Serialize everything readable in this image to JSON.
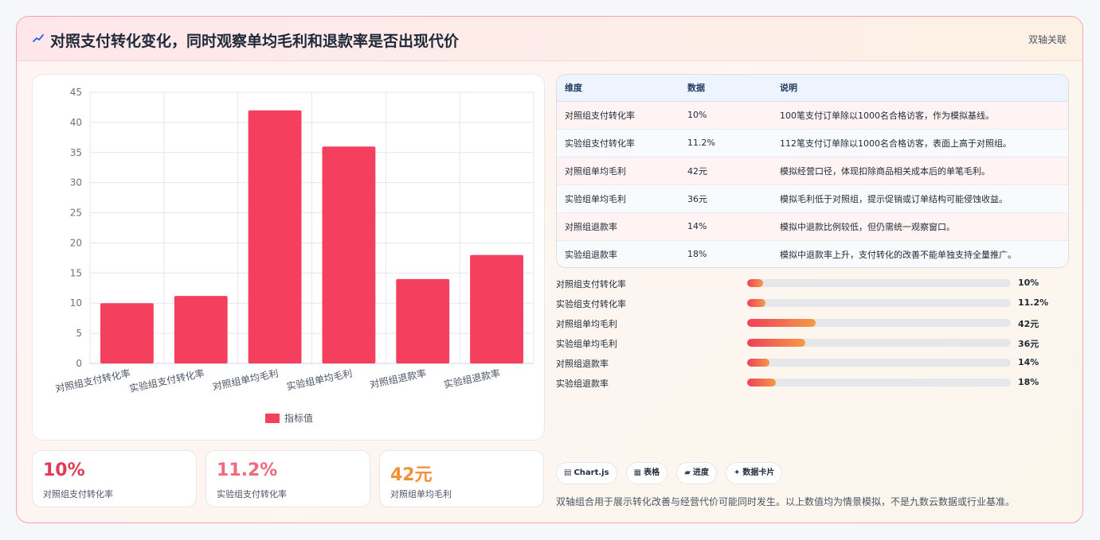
{
  "header": {
    "title": "对照支付转化变化，同时观察单均毛利和退款率是否出现代价",
    "tag": "双轴关联",
    "icon": "sparkline-icon"
  },
  "chart_data": {
    "type": "bar",
    "categories": [
      "对照组支付转化率",
      "实验组支付转化率",
      "对照组单均毛利",
      "实验组单均毛利",
      "对照组退款率",
      "实验组退款率"
    ],
    "series": [
      {
        "name": "指标值",
        "values": [
          10,
          11.2,
          42,
          36,
          14,
          18
        ],
        "color": "#f43f5e"
      }
    ],
    "ylim": [
      0,
      45
    ],
    "yticks": [
      0,
      5,
      10,
      15,
      20,
      25,
      30,
      35,
      40,
      45
    ],
    "grid": true,
    "legend": "bottom",
    "title": "",
    "xlabel": "",
    "ylabel": ""
  },
  "stats": [
    {
      "value": "10%",
      "label": "对照组支付转化率",
      "color": "#e23a55"
    },
    {
      "value": "11.2%",
      "label": "实验组支付转化率",
      "color": "#ef6a7e"
    },
    {
      "value": "42元",
      "label": "对照组单均毛利",
      "color": "#f29138"
    }
  ],
  "table": {
    "headers": [
      "维度",
      "数据",
      "说明"
    ],
    "rows": [
      [
        "对照组支付转化率",
        "10%",
        "100笔支付订单除以1000名合格访客，作为模拟基线。"
      ],
      [
        "实验组支付转化率",
        "11.2%",
        "112笔支付订单除以1000名合格访客，表面上高于对照组。"
      ],
      [
        "对照组单均毛利",
        "42元",
        "模拟经营口径，体现扣除商品相关成本后的单笔毛利。"
      ],
      [
        "实验组单均毛利",
        "36元",
        "模拟毛利低于对照组，提示促销或订单结构可能侵蚀收益。"
      ],
      [
        "对照组退款率",
        "14%",
        "模拟中退款比例较低，但仍需统一观察窗口。"
      ],
      [
        "实验组退款率",
        "18%",
        "模拟中退款率上升，支付转化的改善不能单独支持全量推广。"
      ]
    ]
  },
  "progress": [
    {
      "label": "对照组支付转化率",
      "value": "10%",
      "fraction": 0.06
    },
    {
      "label": "实验组支付转化率",
      "value": "11.2%",
      "fraction": 0.068
    },
    {
      "label": "对照组单均毛利",
      "value": "42元",
      "fraction": 0.26
    },
    {
      "label": "实验组单均毛利",
      "value": "36元",
      "fraction": 0.22
    },
    {
      "label": "对照组退款率",
      "value": "14%",
      "fraction": 0.085
    },
    {
      "label": "实验组退款率",
      "value": "18%",
      "fraction": 0.11
    }
  ],
  "chips": [
    {
      "icon": "▤",
      "icon_name": "chart-icon",
      "label": "Chart.js"
    },
    {
      "icon": "▦",
      "icon_name": "table-icon",
      "label": "表格"
    },
    {
      "icon": "▰",
      "icon_name": "progress-icon",
      "label": "进度"
    },
    {
      "icon": "✦",
      "icon_name": "sparkle-icon",
      "label": "数据卡片"
    }
  ],
  "footnote": "双轴组合用于展示转化改善与经营代价可能同时发生。以上数值均为情景模拟，不是九数云数据或行业基准。"
}
